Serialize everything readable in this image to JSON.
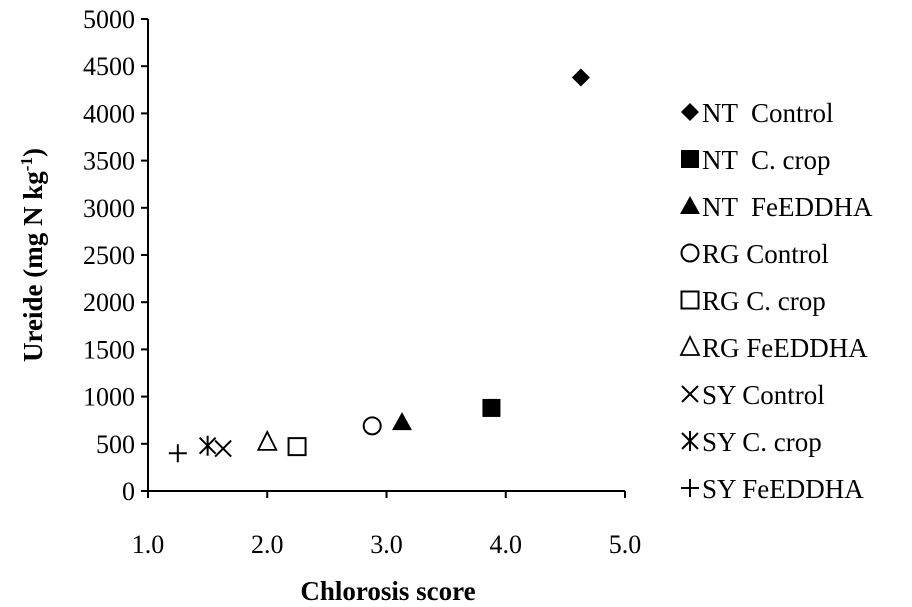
{
  "chart_data": {
    "type": "scatter",
    "title": "",
    "xlabel": "Chlorosis score",
    "ylabel": "Ureide (mg N kg",
    "ylabel_sup": "-1",
    "ylabel_close": ")",
    "xlim": [
      1.0,
      5.0
    ],
    "ylim": [
      0,
      5000
    ],
    "x_ticks": [
      1.0,
      2.0,
      3.0,
      4.0,
      5.0
    ],
    "x_tick_labels": [
      "1.0",
      "2.0",
      "3.0",
      "4.0",
      "5.0"
    ],
    "y_ticks": [
      0,
      500,
      1000,
      1500,
      2000,
      2500,
      3000,
      3500,
      4000,
      4500,
      5000
    ],
    "y_tick_labels": [
      "0",
      "500",
      "1000",
      "1500",
      "2000",
      "2500",
      "3000",
      "3500",
      "4000",
      "4500",
      "5000"
    ],
    "grid": false,
    "legend_position": "right",
    "series": [
      {
        "name": "NT  Control",
        "marker": "filled-diamond",
        "x": [
          4.63
        ],
        "y": [
          4380
        ]
      },
      {
        "name": "NT  C. crop",
        "marker": "filled-square",
        "x": [
          3.88
        ],
        "y": [
          880
        ]
      },
      {
        "name": "NT  FeEDDHA",
        "marker": "filled-triangle",
        "x": [
          3.13
        ],
        "y": [
          730
        ]
      },
      {
        "name": "RG Control",
        "marker": "open-circle",
        "x": [
          2.88
        ],
        "y": [
          690
        ]
      },
      {
        "name": "RG C. crop",
        "marker": "open-square",
        "x": [
          2.25
        ],
        "y": [
          470
        ]
      },
      {
        "name": "RG FeEDDHA",
        "marker": "open-triangle",
        "x": [
          2.0
        ],
        "y": [
          520
        ]
      },
      {
        "name": "SY Control",
        "marker": "x-cross",
        "x": [
          1.63
        ],
        "y": [
          450
        ]
      },
      {
        "name": "SY C. crop",
        "marker": "asterisk",
        "x": [
          1.5
        ],
        "y": [
          480
        ]
      },
      {
        "name": "SY FeEDDHA",
        "marker": "plus",
        "x": [
          1.25
        ],
        "y": [
          400
        ]
      }
    ]
  }
}
